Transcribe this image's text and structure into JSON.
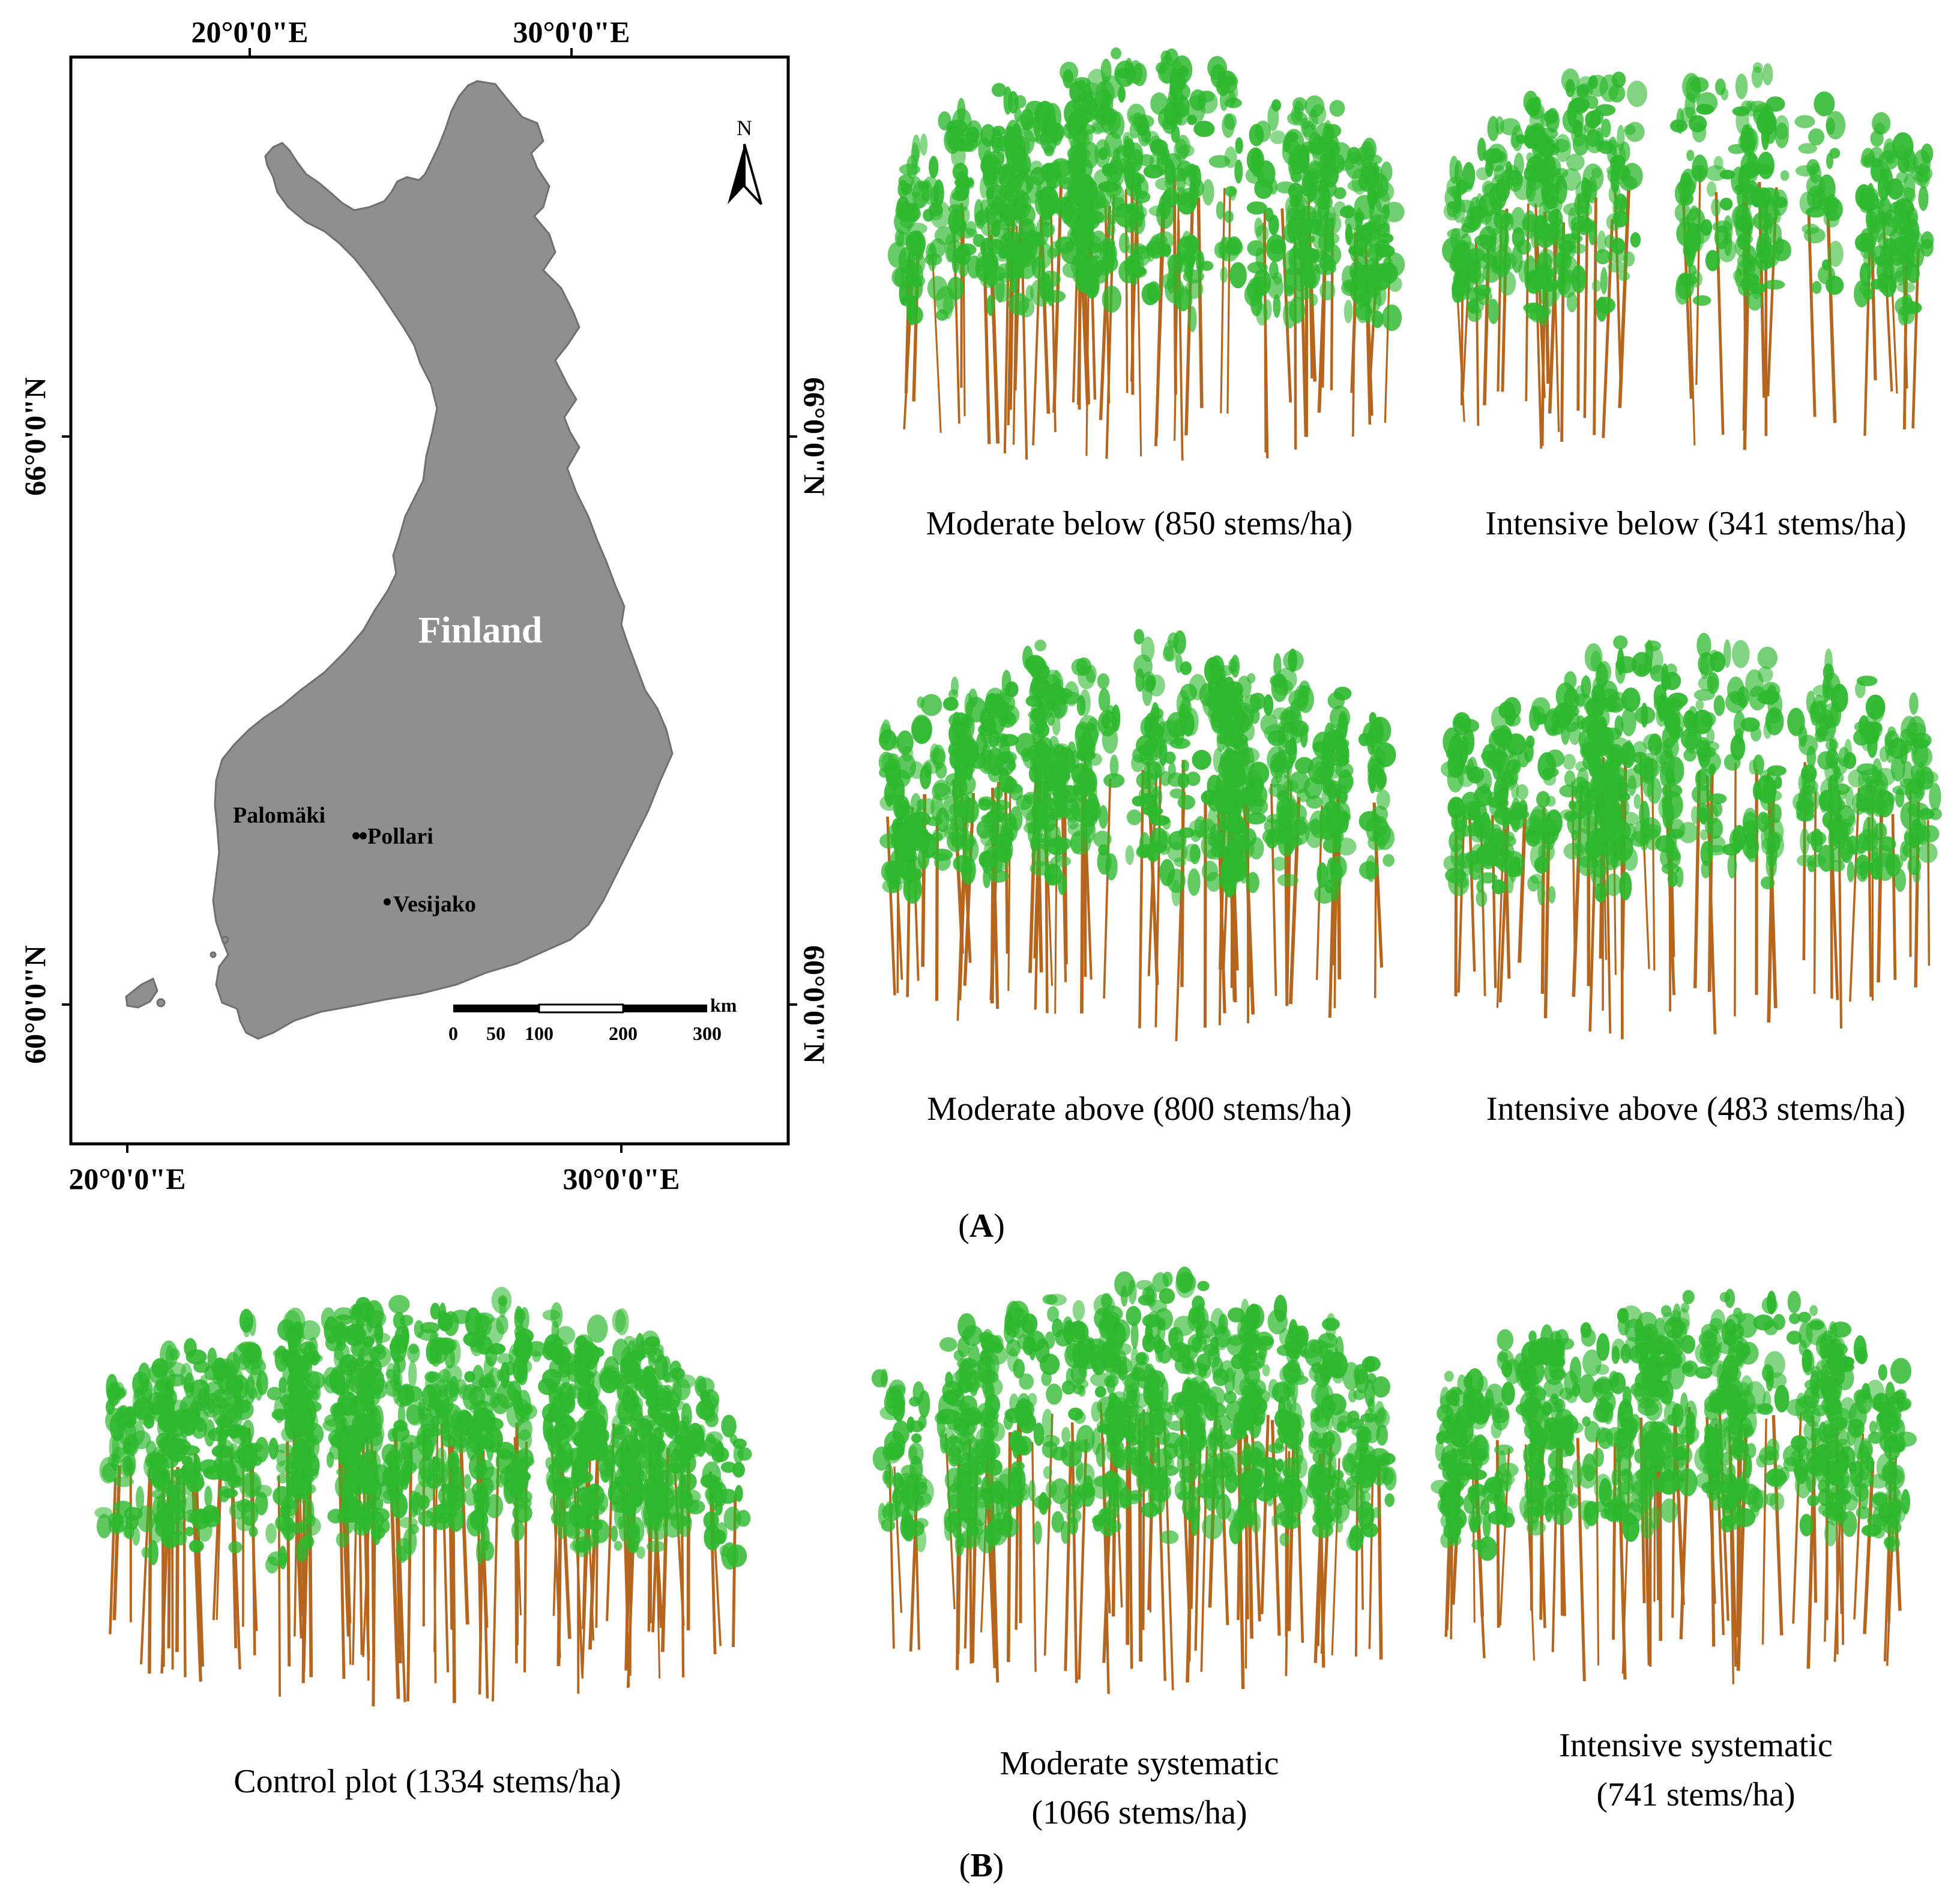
{
  "map": {
    "top_labels": [
      "20°0'0\"E",
      "30°0'0\"E"
    ],
    "bottom_labels": [
      "20°0'0\"E",
      "30°0'0\"E"
    ],
    "left_labels": [
      "66°0'0\"N",
      "60°0'0\"N"
    ],
    "right_labels": [
      "66°0'0\"N",
      "60°0'0\"N"
    ],
    "country_label": "Finland",
    "north_label": "N",
    "sites": [
      "Palomäki",
      "Pollari",
      "Vesijako"
    ],
    "scale_ticks": [
      "0",
      "50",
      "100",
      "200",
      "300"
    ],
    "scale_unit": "km",
    "land_color": "#8f8f8f"
  },
  "plots": {
    "moderate_below": "Moderate below (850 stems/ha)",
    "intensive_below": "Intensive below (341 stems/ha)",
    "moderate_above": "Moderate above (800 stems/ha)",
    "intensive_above": "Intensive above (483 stems/ha)",
    "control": "Control plot (1334 stems/ha)",
    "moderate_systematic_line1": "Moderate systematic",
    "moderate_systematic_line2": "(1066 stems/ha)",
    "intensive_systematic_line1": "Intensive systematic",
    "intensive_systematic_line2": "(741 stems/ha)",
    "crown_color": "#2eb82e",
    "stem_color": "#b5651d"
  },
  "panels": {
    "A": "A",
    "B": "B"
  }
}
